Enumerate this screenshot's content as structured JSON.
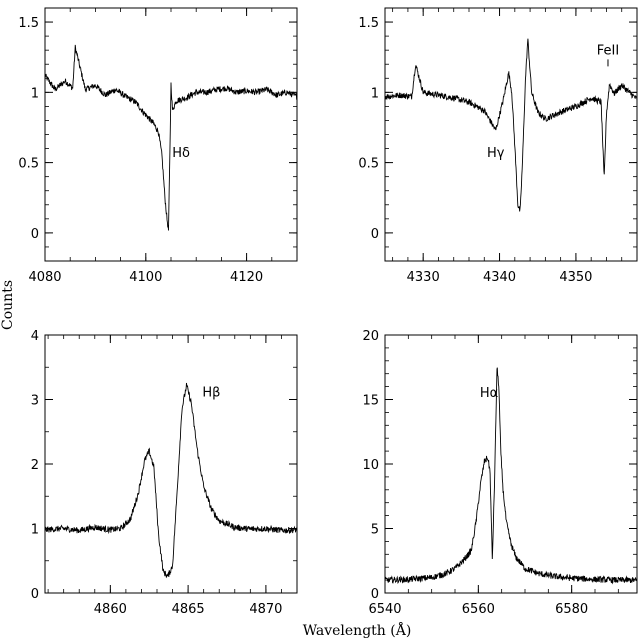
{
  "figure": {
    "xlabel": "Wavelength (Å)",
    "ylabel": "Counts"
  },
  "chart_data": [
    {
      "type": "line",
      "panel": "top-left",
      "xlabel": "",
      "ylabel": "",
      "xlim": [
        4080,
        4130
      ],
      "ylim": [
        -0.2,
        1.6
      ],
      "xticks": [
        4080,
        4100,
        4120
      ],
      "yticks": [
        0,
        0.5,
        1,
        1.5
      ],
      "xtick_labels": [
        "4080",
        "4100",
        "4120"
      ],
      "ytick_labels": [
        "0",
        "0.5",
        "1",
        "1.5"
      ],
      "annotations": [
        {
          "text": "Hδ",
          "x": 4107,
          "y": 0.54
        }
      ],
      "series": [
        {
          "x": [
            4080,
            4082,
            4084,
            4085.5,
            4086,
            4088,
            4090,
            4092,
            4094,
            4096,
            4098,
            4099.5,
            4100.5,
            4101.5,
            4102.5,
            4103.2,
            4103.8,
            4104.2,
            4104.5,
            4104.8,
            4105,
            4105.3,
            4106,
            4108,
            4110,
            4112,
            4114,
            4116,
            4118,
            4120,
            4122,
            4124,
            4126,
            4128,
            4130
          ],
          "y": [
            1.12,
            1.02,
            1.08,
            1.03,
            1.32,
            1.02,
            1.05,
            0.98,
            1.02,
            0.97,
            0.93,
            0.86,
            0.82,
            0.78,
            0.72,
            0.55,
            0.25,
            0.1,
            0.02,
            0.6,
            1.06,
            0.87,
            0.94,
            0.96,
            1.0,
            1.0,
            1.02,
            1.03,
            1.0,
            1.01,
            1.0,
            1.02,
            0.98,
            1.0,
            0.97
          ]
        }
      ]
    },
    {
      "type": "line",
      "panel": "top-right",
      "xlabel": "",
      "ylabel": "",
      "xlim": [
        4325,
        4358
      ],
      "ylim": [
        -0.2,
        1.6
      ],
      "xticks": [
        4330,
        4340,
        4350
      ],
      "yticks": [
        0,
        0.5,
        1,
        1.5
      ],
      "xtick_labels": [
        "4330",
        "4340",
        "4350"
      ],
      "ytick_labels": [
        "0",
        "0.5",
        "1",
        "1.5"
      ],
      "annotations": [
        {
          "text": "Hγ",
          "x": 4339.5,
          "y": 0.54
        },
        {
          "text": "FeII",
          "x": 4354.2,
          "y": 1.27
        }
      ],
      "series": [
        {
          "x": [
            4325,
            4327,
            4328.5,
            4329,
            4330,
            4332,
            4334,
            4336,
            4338,
            4339.5,
            4340.5,
            4341.2,
            4341.6,
            4342,
            4342.4,
            4342.7,
            4343,
            4343.4,
            4343.7,
            4344.2,
            4345,
            4346,
            4348,
            4350,
            4352,
            4353.3,
            4353.7,
            4354,
            4354.4,
            4355,
            4356,
            4357,
            4358
          ],
          "y": [
            0.97,
            0.98,
            0.97,
            1.2,
            1.0,
            0.98,
            0.96,
            0.93,
            0.87,
            0.73,
            0.95,
            1.14,
            1.0,
            0.62,
            0.2,
            0.15,
            0.5,
            1.1,
            1.38,
            1.0,
            0.86,
            0.81,
            0.86,
            0.9,
            0.96,
            0.93,
            0.38,
            0.85,
            1.06,
            0.99,
            1.05,
            1.0,
            0.95
          ]
        }
      ]
    },
    {
      "type": "line",
      "panel": "bottom-left",
      "xlabel": "",
      "ylabel": "",
      "xlim": [
        4855.8,
        4872
      ],
      "ylim": [
        0,
        4
      ],
      "xticks": [
        4860,
        4865,
        4870
      ],
      "yticks": [
        0,
        1,
        2,
        3,
        4
      ],
      "xtick_labels": [
        "4860",
        "4865",
        "4870"
      ],
      "ytick_labels": [
        "0",
        "1",
        "2",
        "3",
        "4"
      ],
      "annotations": [
        {
          "text": "Hβ",
          "x": 4866.5,
          "y": 3.05
        }
      ],
      "series": [
        {
          "x": [
            4855.8,
            4857,
            4858,
            4859,
            4860,
            4860.7,
            4861.3,
            4861.8,
            4862.2,
            4862.5,
            4862.8,
            4863.1,
            4863.4,
            4863.7,
            4864,
            4864.3,
            4864.6,
            4864.9,
            4865.2,
            4865.6,
            4866,
            4866.5,
            4867,
            4868,
            4869,
            4870,
            4871,
            4872
          ],
          "y": [
            0.98,
            1.0,
            0.97,
            1.02,
            0.98,
            1.0,
            1.15,
            1.55,
            2.05,
            2.2,
            1.95,
            0.9,
            0.33,
            0.26,
            0.42,
            1.6,
            2.85,
            3.22,
            2.95,
            2.2,
            1.65,
            1.3,
            1.12,
            1.02,
            0.99,
            1.0,
            0.97,
            0.98
          ]
        }
      ]
    },
    {
      "type": "line",
      "panel": "bottom-right",
      "xlabel": "",
      "ylabel": "",
      "xlim": [
        6540,
        6594
      ],
      "ylim": [
        0,
        20
      ],
      "xticks": [
        6540,
        6560,
        6580
      ],
      "yticks": [
        0,
        5,
        10,
        15,
        20
      ],
      "xtick_labels": [
        "6540",
        "6560",
        "6580"
      ],
      "ytick_labels": [
        "0",
        "5",
        "10",
        "15",
        "20"
      ],
      "annotations": [
        {
          "text": "Hα",
          "x": 6562.3,
          "y": 15.2
        }
      ],
      "series": [
        {
          "x": [
            6540,
            6545,
            6550,
            6553,
            6555,
            6557,
            6558.5,
            6559.5,
            6560.5,
            6561.3,
            6562,
            6562.5,
            6563,
            6563.5,
            6564,
            6564.4,
            6564.8,
            6565.3,
            6566,
            6567,
            6568,
            6570,
            6573,
            6576,
            6580,
            6585,
            6590,
            6594
          ],
          "y": [
            1.0,
            1.05,
            1.2,
            1.5,
            1.9,
            2.6,
            3.3,
            5.5,
            8.5,
            10.2,
            10.5,
            9.5,
            2.5,
            9.0,
            17.5,
            16.0,
            11.0,
            8.0,
            5.5,
            3.8,
            2.8,
            1.9,
            1.5,
            1.3,
            1.15,
            1.05,
            1.0,
            1.0
          ]
        }
      ]
    }
  ]
}
